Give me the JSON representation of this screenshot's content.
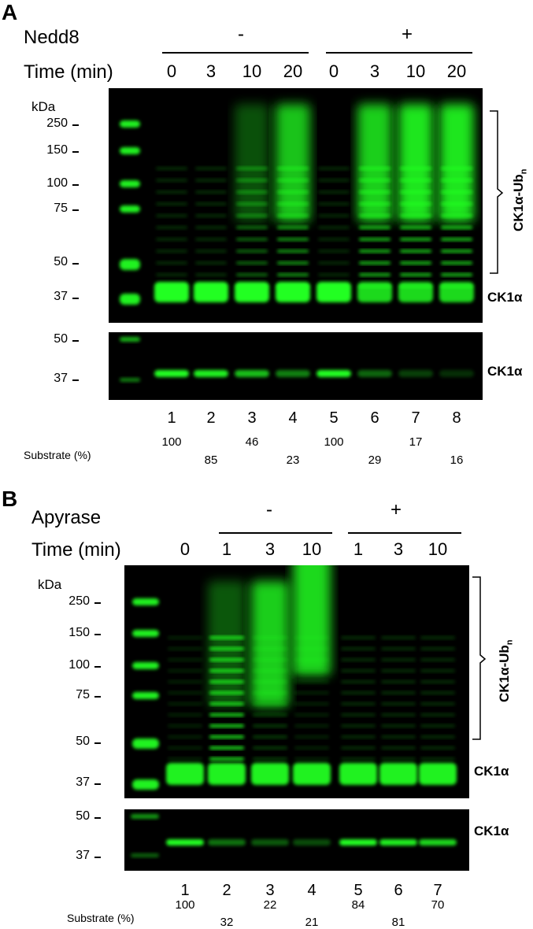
{
  "panelA": {
    "letter": "A",
    "treatment_label": "Nedd8",
    "treatment_minus": "-",
    "treatment_plus": "+",
    "time_label": "Time (min)",
    "times": [
      "0",
      "3",
      "10",
      "20",
      "0",
      "3",
      "10",
      "20"
    ],
    "kda_label": "kDa",
    "mw_top": [
      "250",
      "150",
      "100",
      "75",
      "50",
      "37"
    ],
    "mw_bottom": [
      "50",
      "37"
    ],
    "bracket_label": "CK1α-Ub",
    "bracket_sub": "n",
    "band_label_top": "CK1α",
    "band_label_bottom": "CK1α",
    "lane_numbers": [
      "1",
      "2",
      "3",
      "4",
      "5",
      "6",
      "7",
      "8"
    ],
    "substrate_label": "Substrate (%)",
    "substrate_values": [
      "100",
      "85",
      "46",
      "23",
      "100",
      "29",
      "17",
      "16"
    ]
  },
  "panelB": {
    "letter": "B",
    "treatment_label": "Apyrase",
    "treatment_minus": "-",
    "treatment_plus": "+",
    "time_label": "Time (min)",
    "times": [
      "0",
      "1",
      "3",
      "10",
      "1",
      "3",
      "10"
    ],
    "kda_label": "kDa",
    "mw_top": [
      "250",
      "150",
      "100",
      "75",
      "50",
      "37"
    ],
    "mw_bottom": [
      "50",
      "37"
    ],
    "bracket_label": "CK1α-Ub",
    "bracket_sub": "n",
    "band_label_top": "CK1α",
    "band_label_bottom": "CK1α",
    "lane_numbers": [
      "1",
      "2",
      "3",
      "4",
      "5",
      "6",
      "7"
    ],
    "substrate_label": "Substrate (%)",
    "substrate_values": [
      "100",
      "32",
      "22",
      "21",
      "84",
      "81",
      "70"
    ]
  },
  "colors": {
    "blot_bg": "#000000",
    "signal": "#22ff22"
  }
}
